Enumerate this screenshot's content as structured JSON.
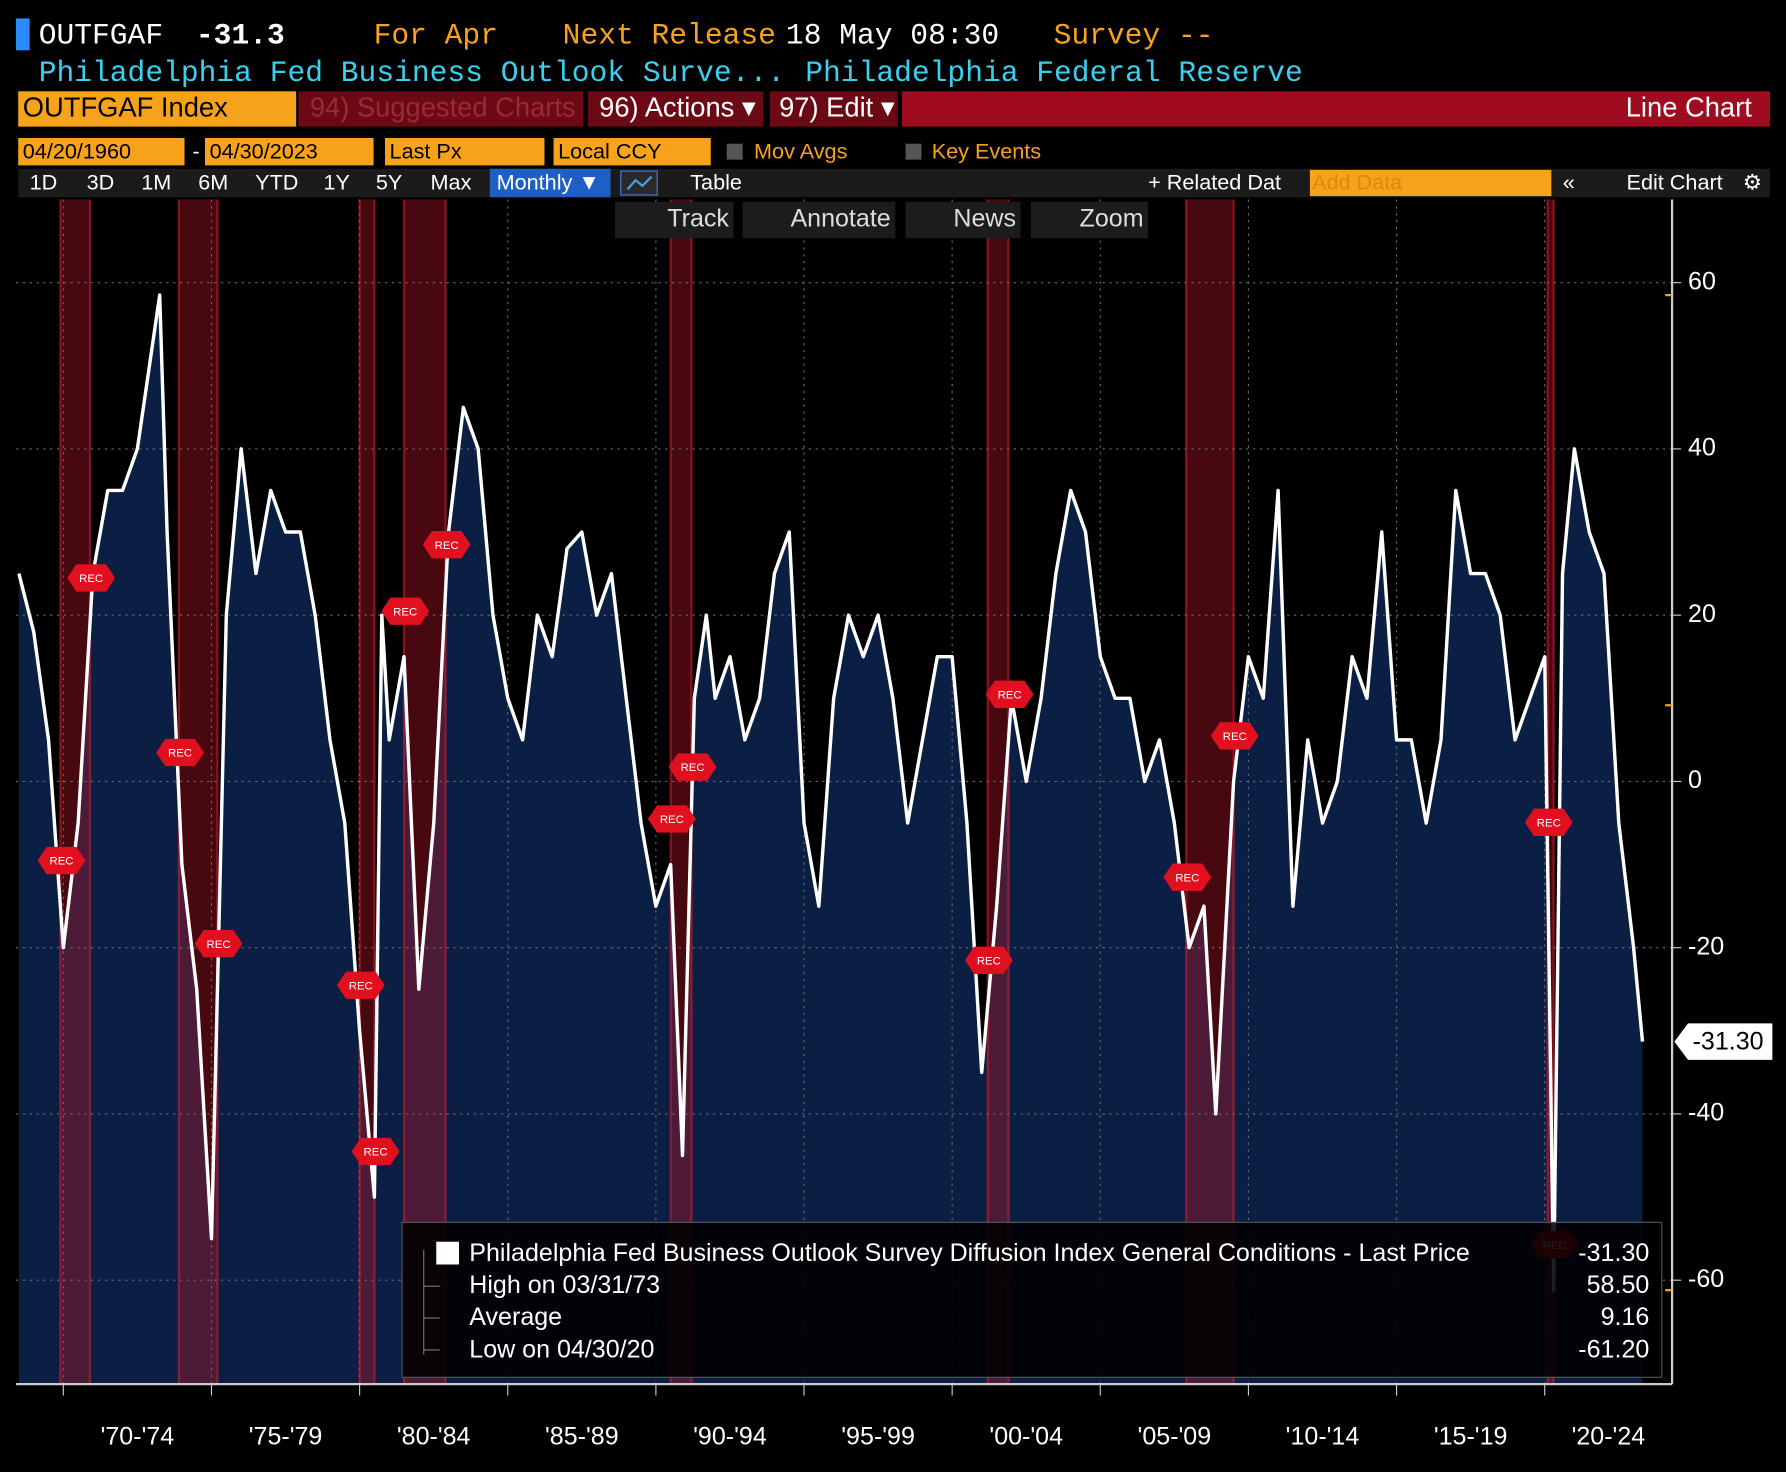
{
  "header": {
    "ticker": "OUTFGAF",
    "last": "-31.3",
    "period": "For Apr",
    "next_release_label": "Next Release",
    "next_release": "18 May 08:30",
    "survey": "Survey --",
    "name": "Philadelphia Fed Business Outlook Surve...",
    "source": "Philadelphia Federal Reserve"
  },
  "toolbar": {
    "security": "OUTFGAF Index",
    "suggested": "94) Suggested Charts",
    "actions": "96) Actions ▾",
    "edit": "97) Edit ▾",
    "chart_kind": "Line Chart",
    "start_date": "04/20/1960",
    "dash": "-",
    "end_date": "04/30/2023",
    "field": "Last Px",
    "currency": "Local CCY",
    "mov_avgs": "Mov Avgs",
    "key_events": "Key Events",
    "periods": [
      "1D",
      "3D",
      "1M",
      "6M",
      "YTD",
      "1Y",
      "5Y",
      "Max"
    ],
    "frequency": "Monthly ▼",
    "table": "Table",
    "related": "+ Related Dat",
    "add_data": "Add Data",
    "collapse": "«",
    "edit_chart": "Edit Chart",
    "gear": "⚙",
    "tools": [
      "Track",
      "Annotate",
      "News",
      "Zoom"
    ]
  },
  "chart_data": {
    "type": "line",
    "series": [
      {
        "name": "Philadelphia Fed Business Outlook Survey Diffusion Index General Conditions - Last Price",
        "color": "#ffffff",
        "fill": "#0b1f45",
        "x": [
          1968.5,
          1969,
          1969.5,
          1970,
          1970.5,
          1971,
          1971.5,
          1972,
          1972.5,
          1973.25,
          1973.5,
          1974,
          1974.5,
          1975,
          1975.5,
          1976,
          1976.5,
          1977,
          1977.5,
          1978,
          1978.5,
          1979,
          1979.5,
          1980,
          1980.5,
          1980.75,
          1981,
          1981.5,
          1982,
          1982.5,
          1983,
          1983.5,
          1984,
          1984.5,
          1985,
          1985.5,
          1986,
          1986.5,
          1987,
          1987.5,
          1988,
          1988.5,
          1989,
          1989.5,
          1990,
          1990.5,
          1990.9,
          1991.3,
          1991.7,
          1992,
          1992.5,
          1993,
          1993.5,
          1994,
          1994.5,
          1995,
          1995.5,
          1996,
          1996.5,
          1997,
          1997.5,
          1998,
          1998.5,
          1999,
          1999.5,
          2000,
          2000.5,
          2001,
          2001.5,
          2002,
          2002.5,
          2003,
          2003.5,
          2004,
          2004.5,
          2005,
          2005.5,
          2006,
          2006.5,
          2007,
          2007.5,
          2008,
          2008.5,
          2008.9,
          2009.5,
          2010,
          2010.5,
          2011,
          2011.5,
          2012,
          2012.5,
          2013,
          2013.5,
          2014,
          2014.5,
          2015,
          2015.5,
          2016,
          2016.5,
          2017,
          2017.5,
          2018,
          2018.5,
          2019,
          2019.5,
          2020,
          2020.3,
          2020.6,
          2021,
          2021.5,
          2022,
          2022.5,
          2023,
          2023.3
        ],
        "values": [
          25,
          18,
          5,
          -20,
          -5,
          25,
          35,
          35,
          40,
          58.5,
          30,
          -10,
          -25,
          -55,
          20,
          40,
          25,
          35,
          30,
          30,
          20,
          5,
          -5,
          -30,
          -50,
          20,
          5,
          15,
          -25,
          -5,
          30,
          45,
          40,
          20,
          10,
          5,
          20,
          15,
          28,
          30,
          20,
          25,
          10,
          -5,
          -15,
          -10,
          -45,
          10,
          20,
          10,
          15,
          5,
          10,
          25,
          30,
          -5,
          -15,
          10,
          20,
          15,
          20,
          10,
          -5,
          5,
          15,
          15,
          -5,
          -35,
          -15,
          10,
          0,
          10,
          25,
          35,
          30,
          15,
          10,
          10,
          0,
          5,
          -5,
          -20,
          -15,
          -40,
          0,
          15,
          10,
          35,
          -15,
          5,
          -5,
          0,
          15,
          10,
          30,
          5,
          5,
          -5,
          5,
          35,
          25,
          25,
          20,
          5,
          10,
          15,
          -61.2,
          25,
          40,
          30,
          25,
          -5,
          -20,
          -31.3
        ]
      }
    ],
    "last_value": {
      "value": -31.3,
      "label": "-31.30"
    },
    "stats": [
      {
        "name": "High on 03/31/73",
        "value": {
          "value": 58.5,
          "label": "58.50"
        }
      },
      {
        "name": "Average",
        "value": 9.16
      },
      {
        "name": "Low on 04/30/20",
        "value": {
          "value": -61.2,
          "label": "-61.20"
        }
      }
    ],
    "recession_label": "REC",
    "recessions": [
      [
        1969.9,
        1970.9
      ],
      [
        1973.9,
        1975.2
      ],
      [
        1980.0,
        1980.5
      ],
      [
        1981.5,
        1982.9
      ],
      [
        1990.5,
        1991.2
      ],
      [
        2001.2,
        2001.9
      ],
      [
        2007.9,
        2009.5
      ],
      [
        2020.1,
        2020.3
      ]
    ],
    "xlim": [
      1968.4,
      2024.3
    ],
    "xticks": [
      1970,
      1975,
      1980,
      1985,
      1990,
      1995,
      2000,
      2005,
      2010,
      2015,
      2020
    ],
    "x_period_labels": [
      "'70-'74",
      "'75-'79",
      "'80-'84",
      "'85-'89",
      "'90-'94",
      "'95-'99",
      "'00-'04",
      "'05-'09",
      "'10-'14",
      "'15-'19",
      "'20-'24"
    ],
    "ylim": [
      -72.5,
      70
    ],
    "yticks": [
      60,
      40,
      20,
      0,
      -20,
      -40,
      -60
    ],
    "grid": true
  }
}
